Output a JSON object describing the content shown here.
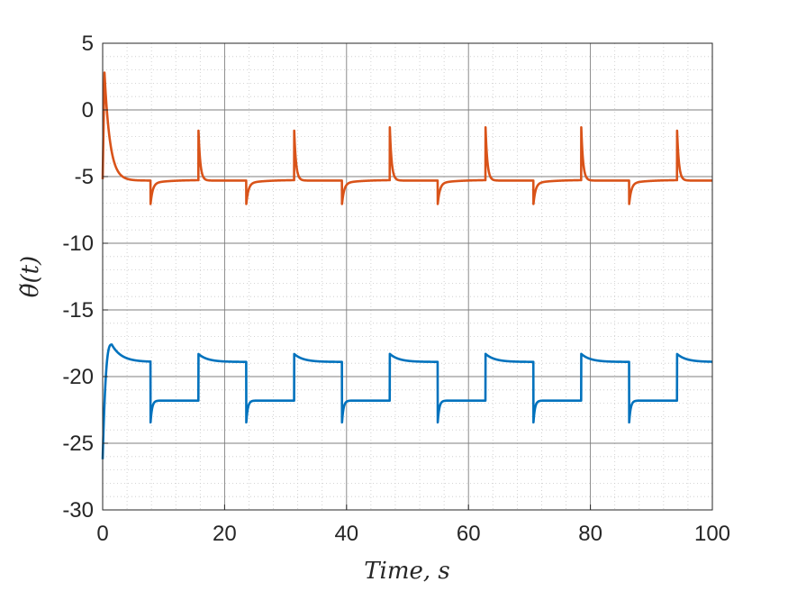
{
  "chart_data": {
    "type": "line",
    "xlabel": "Time, s",
    "ylabel": "θ̃(t)",
    "xlim": [
      0,
      100
    ],
    "ylim": [
      -30,
      5
    ],
    "x_ticks": [
      0,
      20,
      40,
      60,
      80,
      100
    ],
    "y_ticks": [
      5,
      0,
      -5,
      -10,
      -15,
      -20,
      -25,
      -30
    ],
    "x_tick_labels": [
      "0",
      "20",
      "40",
      "60",
      "80",
      "100"
    ],
    "y_tick_labels": [
      "5",
      "0",
      "-5",
      "-10",
      "-15",
      "-20",
      "-25",
      "-30"
    ],
    "grid": true,
    "minor_grid": true,
    "legend": "none",
    "series": [
      {
        "color": "#D95319",
        "period": 15.7,
        "pulse_width": 7.85,
        "initial_value": -5.2,
        "initial_peak": 2.8,
        "initial_peak_time": 0.3,
        "high_level": -5.3,
        "low_level": -5.5,
        "spike_up_value": -1.3,
        "spike_down_value": -7.1,
        "spike_up_times": [
          15.7,
          31.4,
          47.1,
          62.8,
          78.5,
          94.2
        ],
        "spike_down_times": [
          7.85,
          23.55,
          39.25,
          54.95,
          70.65,
          86.35
        ]
      },
      {
        "color": "#0072BD",
        "period": 15.7,
        "pulse_width": 7.85,
        "initial_value": -26.2,
        "initial_peak": -17.6,
        "initial_peak_time": 1.5,
        "high_level": -18.9,
        "high_overshoot": -18.3,
        "low_level": -21.8,
        "low_undershoot": -23.5,
        "rise_times": [
          15.7,
          31.4,
          47.1,
          62.8,
          78.5,
          94.2
        ],
        "fall_times": [
          7.85,
          23.55,
          39.25,
          54.95,
          70.65,
          86.35
        ]
      }
    ]
  }
}
